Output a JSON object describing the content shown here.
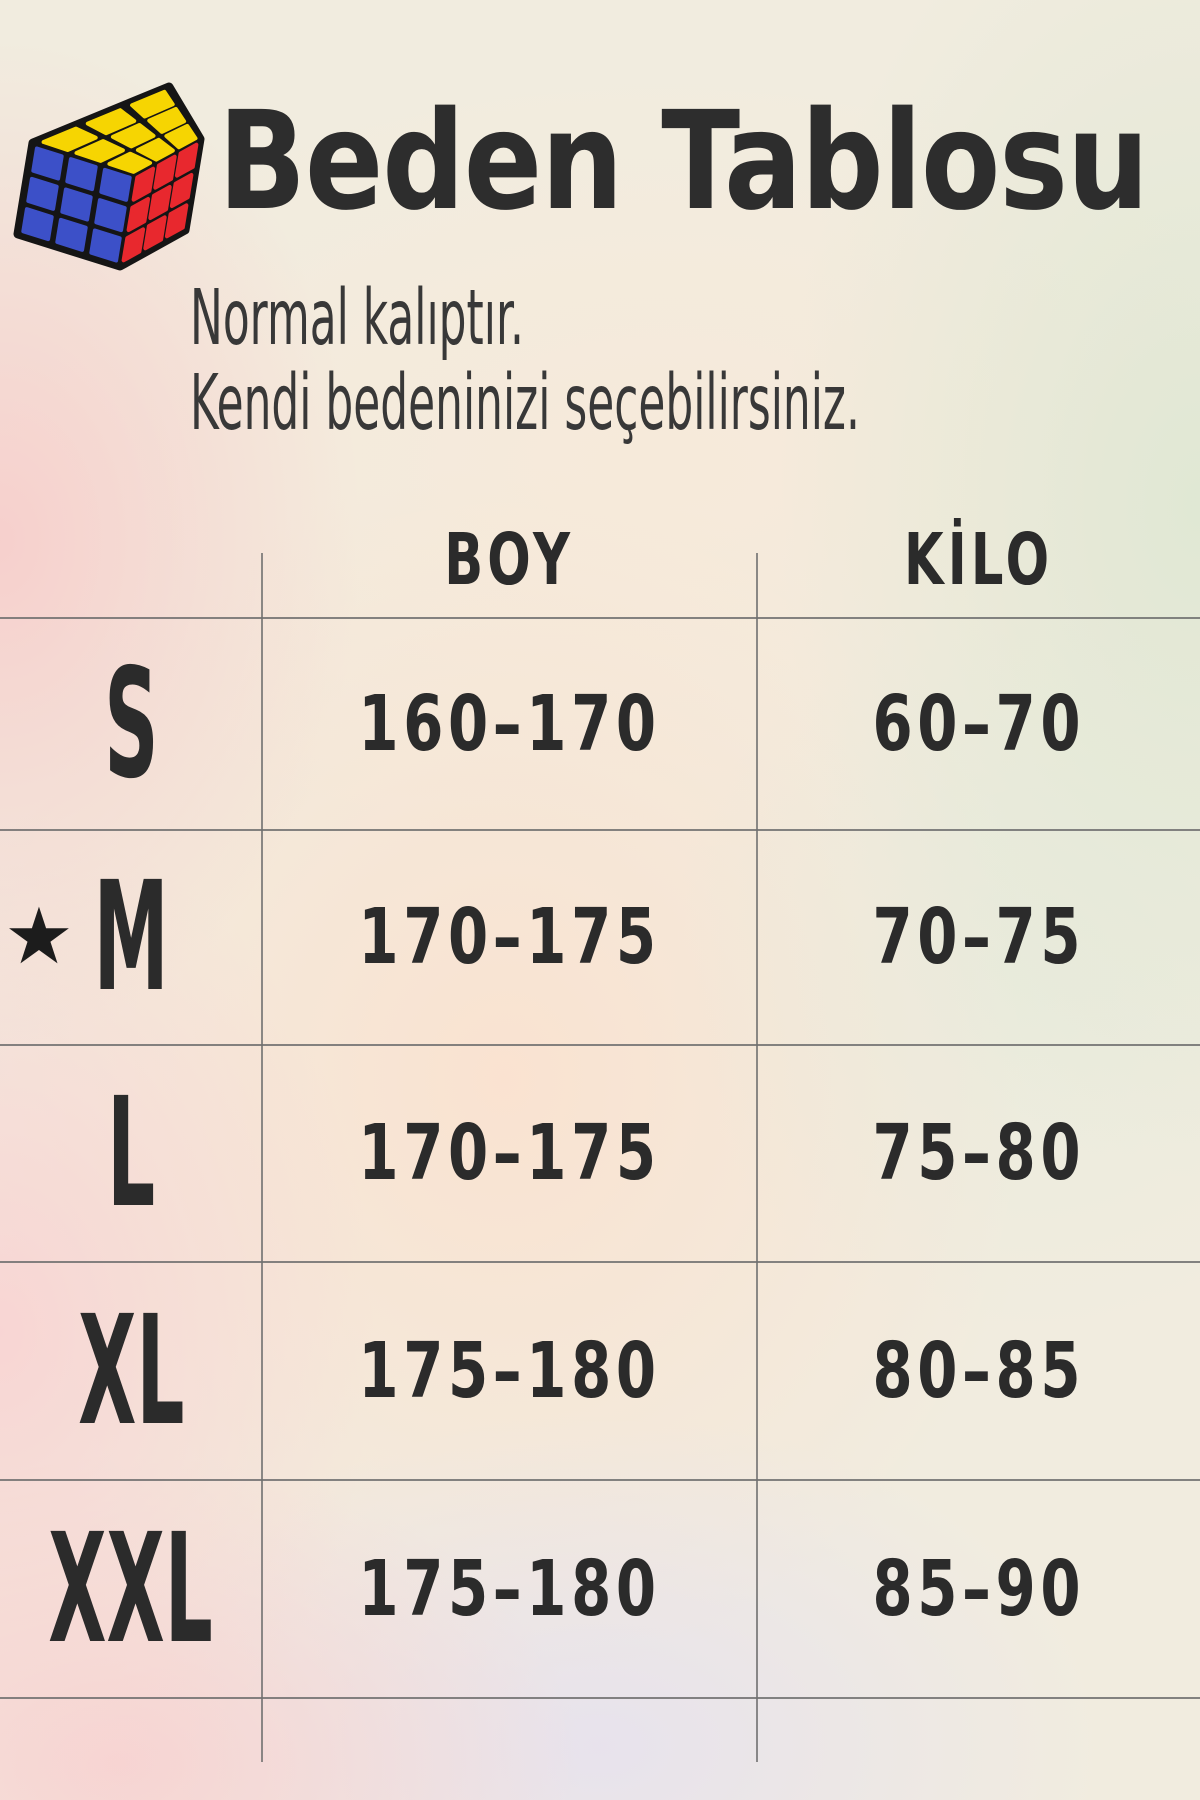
{
  "header": {
    "logo": "rubiks-cube",
    "title": "Beden Tablosu",
    "subtitle_line1": "Normal kalıptır.",
    "subtitle_line2": "Kendi bedeninizi seçebilirsiniz."
  },
  "table": {
    "columns": {
      "boy": "BOY",
      "kilo": "KİLO"
    },
    "rows": [
      {
        "size": "S",
        "boy": "160–170",
        "kilo": "60–70"
      },
      {
        "size": "M",
        "boy": "170–175",
        "kilo": "70–75",
        "marker": "★"
      },
      {
        "size": "L",
        "boy": "170–175",
        "kilo": "75–80"
      },
      {
        "size": "XL",
        "boy": "175–180",
        "kilo": "80–85"
      },
      {
        "size": "XXL",
        "boy": "175–180",
        "kilo": "85–90"
      }
    ]
  },
  "colors": {
    "text": "#2b2b2b",
    "title": "#2d2d2d",
    "grid_line": "#6f6f6f",
    "cube_yellow": "#f6d502",
    "cube_blue": "#3c50c8",
    "cube_red": "#e8282e",
    "cube_outline": "#151515"
  }
}
